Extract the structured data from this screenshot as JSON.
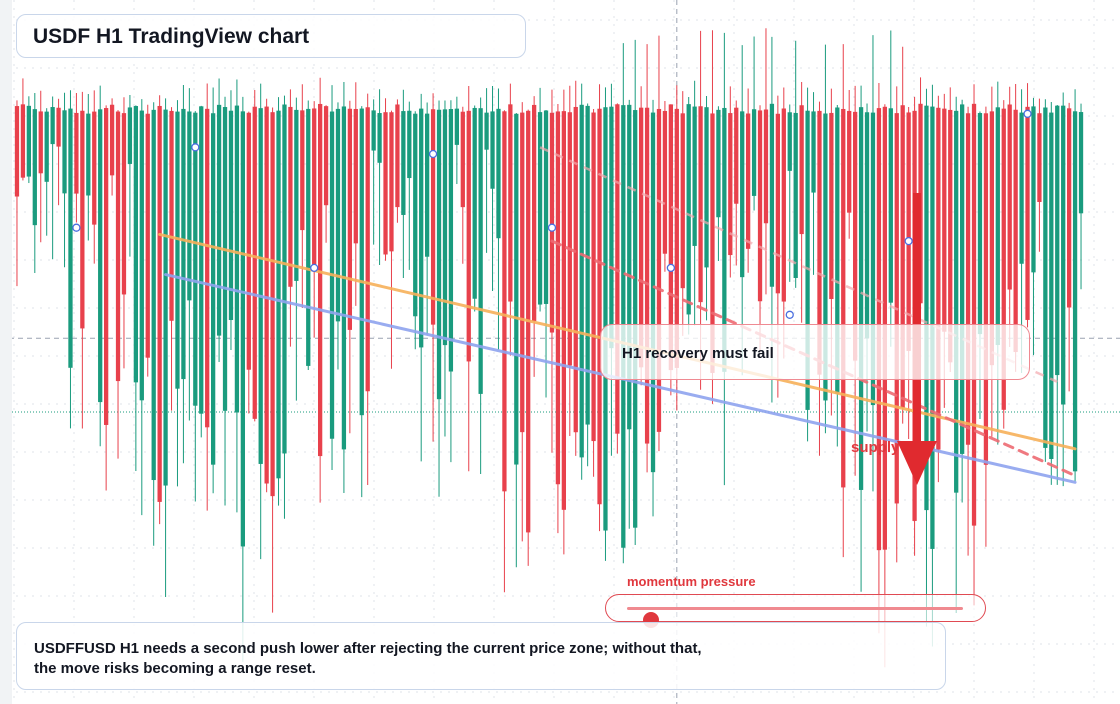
{
  "title": "USDF H1 TradingView chart",
  "callout": {
    "text": "H1 recovery must fail"
  },
  "supply_label": "supply",
  "momentum": {
    "label": "momentum pressure",
    "level": 0.07
  },
  "summary": "USDFFUSD H1 needs a second push lower after rejecting the current price zone; without that, the move risks becoming a range reset.",
  "colors": {
    "bull": "#1a9b7e",
    "bear": "#e8414c",
    "orange_line": "#f7b15a",
    "blue_line": "#8fa4ef",
    "accent_red": "#e02a2f",
    "panel_border": "#c9d6ea"
  },
  "icons": [
    "down-arrow-icon"
  ],
  "chart_data": {
    "type": "candlestick",
    "timeframe": "H1",
    "symbol": "USDFFUSD",
    "ylim": [
      0,
      100
    ],
    "grid": true,
    "current_price_level": 41.5,
    "crosshair": {
      "x_index": 111,
      "y": 52.5
    },
    "candles_count": 180,
    "pattern": "repeating 60-bar cycle, open near ceiling, breakdown lower",
    "trendlines": [
      {
        "name": "",
        "color": "orange",
        "from": {
          "index": 24,
          "y": 68
        },
        "to": {
          "index": 178,
          "y": 36
        }
      },
      {
        "name": "",
        "color": "blue",
        "from": {
          "index": 25,
          "y": 62
        },
        "to": {
          "index": 178,
          "y": 31
        }
      },
      {
        "name": "",
        "color": "red-dashed",
        "from": {
          "index": 90,
          "y": 67
        },
        "to": {
          "index": 178,
          "y": 32
        }
      }
    ],
    "markers_at_index": [
      10,
      30,
      50,
      70,
      90,
      110,
      130,
      150,
      170
    ]
  }
}
